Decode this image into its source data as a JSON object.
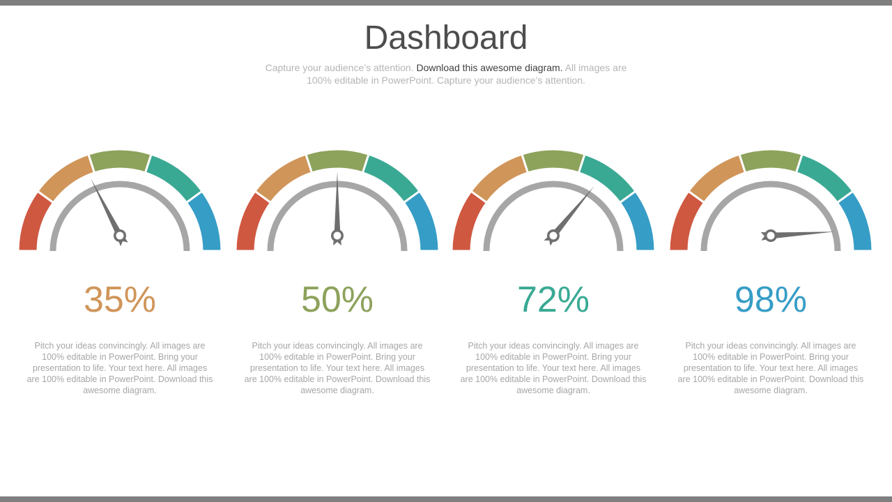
{
  "header": {
    "title": "Dashboard",
    "subtitle_part1": "Capture your audience’s attention. ",
    "subtitle_part2": "Download this awesome diagram.",
    "subtitle_part3": " All images are 100% editable in PowerPoint. Capture your audience’s attention."
  },
  "colors": {
    "segments": [
      "#cf5841",
      "#d09559",
      "#8da25b",
      "#3aa994",
      "#369dc6"
    ],
    "inner_arc": "#a6a6a6",
    "needle": "#6f6f6f",
    "bars": "#7f7f7f"
  },
  "gauges": [
    {
      "value": 35,
      "label": "35%",
      "color": "#d09559",
      "description": "Pitch your ideas convincingly.  All images are 100% editable  in PowerPoint.  Bring your presentation to life. Your text here. All images are 100% editable in PowerPoint. Download this awesome  diagram."
    },
    {
      "value": 50,
      "label": "50%",
      "color": "#8da25b",
      "description": "Pitch your ideas convincingly.  All images are 100% editable  in PowerPoint.  Bring your presentation to life. Your text here. All images are 100% editable in PowerPoint. Download this awesome  diagram."
    },
    {
      "value": 72,
      "label": "72%",
      "color": "#3aa994",
      "description": "Pitch your ideas convincingly.  All images are 100% editable  in PowerPoint.  Bring your presentation to life. Your text here. All images are 100% editable in PowerPoint. Download this awesome  diagram."
    },
    {
      "value": 98,
      "label": "98%",
      "color": "#369dc6",
      "description": "Pitch your ideas convincingly.  All images are 100% editable  in PowerPoint.  Bring your presentation to life. Your text here. All images are 100% editable in PowerPoint. Download this awesome  diagram."
    }
  ]
}
